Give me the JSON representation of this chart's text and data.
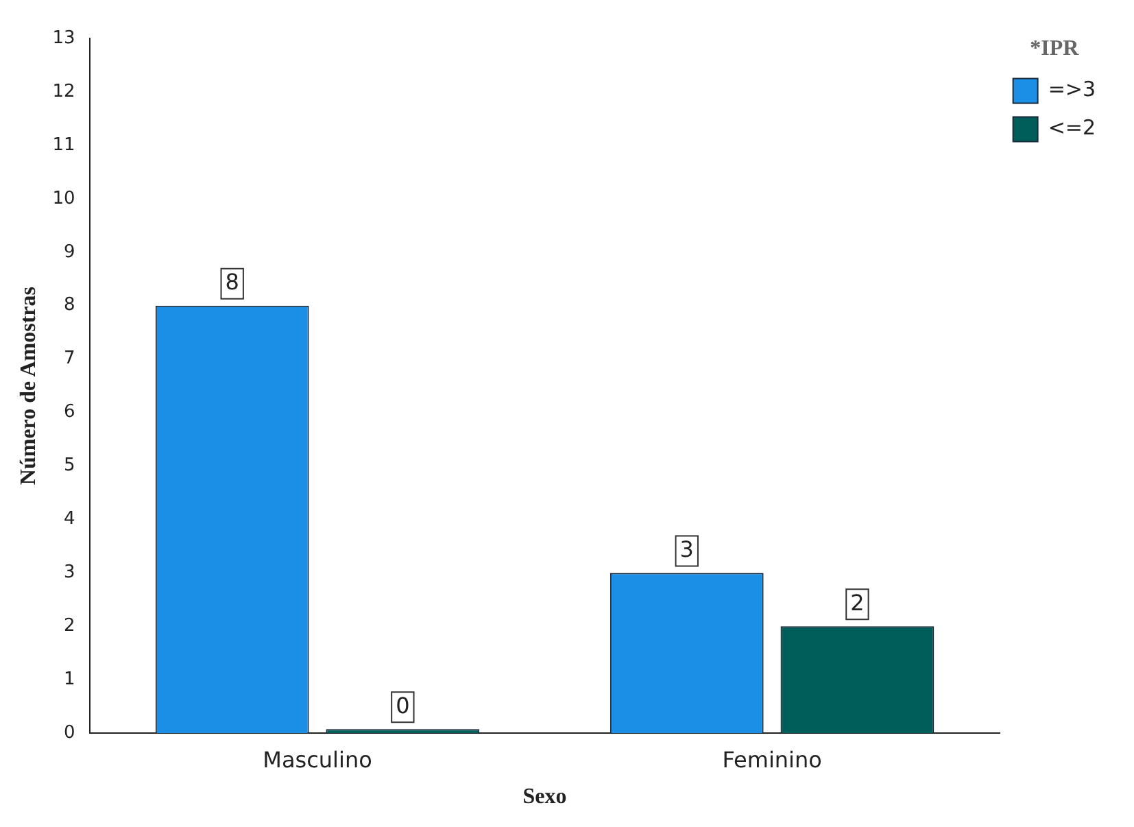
{
  "chart_data": {
    "type": "bar",
    "xlabel": "Sexo",
    "ylabel": "Número de Amostras",
    "legend_title": "*IPR",
    "categories": [
      "Masculino",
      "Feminino"
    ],
    "series": [
      {
        "name": "=>3",
        "color": "#1b8ee6",
        "values": [
          8,
          3
        ]
      },
      {
        "name": "<=2",
        "color": "#005e5a",
        "values": [
          0,
          2
        ]
      }
    ],
    "ylim": [
      0,
      13
    ],
    "yticks": [
      0,
      1,
      2,
      3,
      4,
      5,
      6,
      7,
      8,
      9,
      10,
      11,
      12,
      13
    ],
    "grid": false,
    "legend": "top right",
    "data_labels": true
  }
}
